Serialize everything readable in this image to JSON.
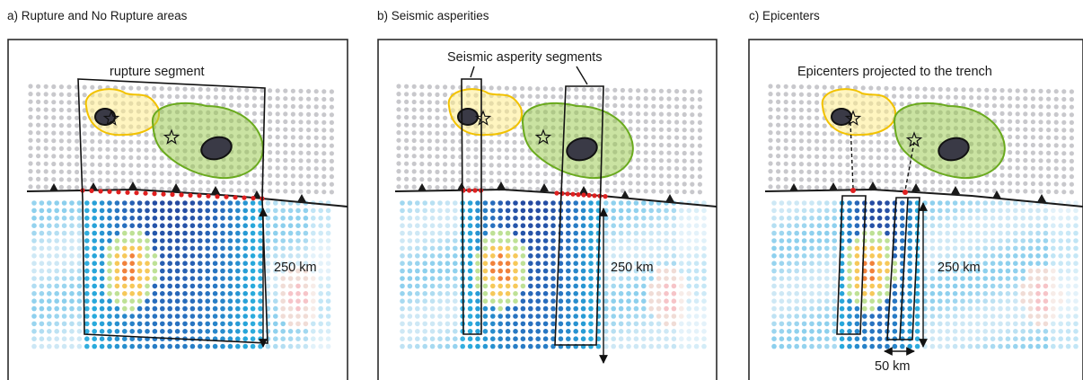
{
  "panels": [
    {
      "title": "a) Rupture and No Rupture areas",
      "segment_label": "rupture segment",
      "distance_label": "250 km"
    },
    {
      "title": "b) Seismic asperities",
      "segment_label": "Seismic asperity segments",
      "distance_label": "250 km"
    },
    {
      "title": "c) Epicenters",
      "segment_label": "Epicenters projected to the trench",
      "distance_label": "250 km",
      "width_label": "50 km"
    }
  ],
  "colors": {
    "land_dots": "#c8c8cc",
    "trench": "#1a1a1a",
    "rupture_points": "#e02020",
    "asperity_yellow": "#f2c200",
    "asperity_green": "#6aaa1e",
    "high_slip": "#3a3a46"
  }
}
